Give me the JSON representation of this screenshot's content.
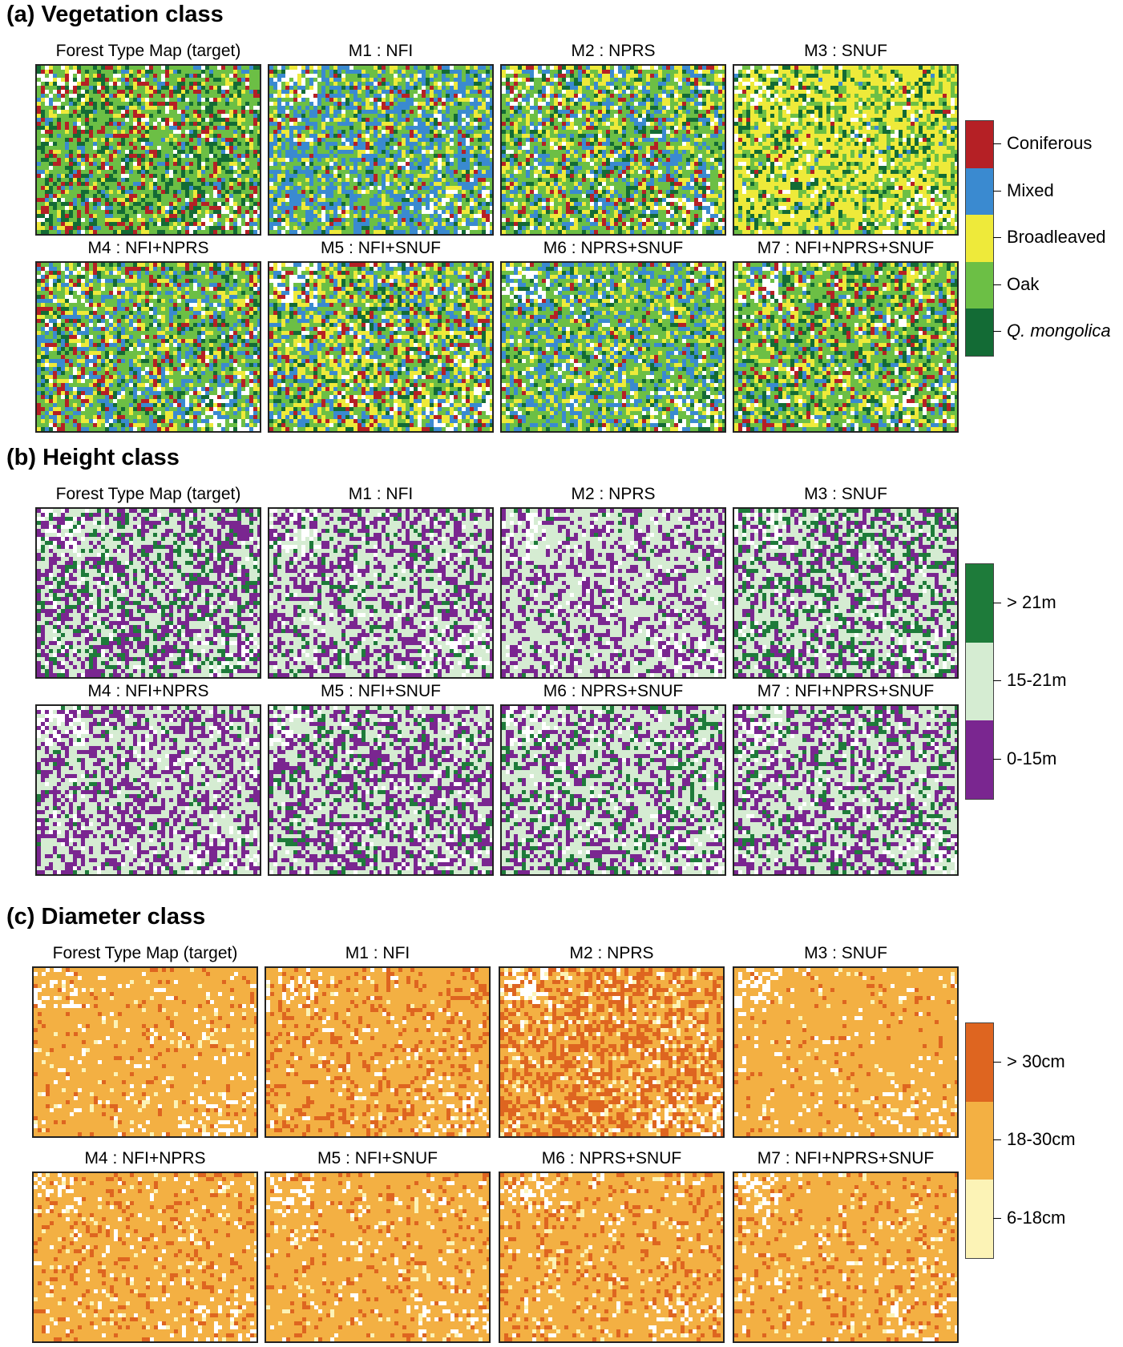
{
  "panels": [
    {
      "id": "vegetation",
      "title": "(a) Vegetation class",
      "map_titles": [
        "Forest Type Map (target)",
        "M1 : NFI",
        "M2 : NPRS",
        "M3 : SNUF",
        "M4 : NFI+NPRS",
        "M5 : NFI+SNUF",
        "M6 : NPRS+SNUF",
        "M7 : NFI+NPRS+SNUF"
      ],
      "legend": [
        {
          "label": "Coniferous",
          "color": "#b52025"
        },
        {
          "label": "Mixed",
          "color": "#3a8ad0"
        },
        {
          "label": "Broadleaved",
          "color": "#eeea3a"
        },
        {
          "label": "Oak",
          "color": "#6cbf45"
        },
        {
          "label": "Q. mongolica",
          "color": "#136b35",
          "italic": true
        }
      ]
    },
    {
      "id": "height",
      "title": "(b) Height class",
      "map_titles": [
        "Forest Type Map (target)",
        "M1 : NFI",
        "M2 : NPRS",
        "M3 : SNUF",
        "M4 : NFI+NPRS",
        "M5 : NFI+SNUF",
        "M6 : NPRS+SNUF",
        "M7 : NFI+NPRS+SNUF"
      ],
      "legend": [
        {
          "label": "> 21m",
          "color": "#1e7b3a"
        },
        {
          "label": "15-21m",
          "color": "#d5ecd2"
        },
        {
          "label": "0-15m",
          "color": "#7a2690"
        }
      ]
    },
    {
      "id": "diameter",
      "title": "(c) Diameter class",
      "map_titles": [
        "Forest Type Map (target)",
        "M1 : NFI",
        "M2 : NPRS",
        "M3 : SNUF",
        "M4 : NFI+NPRS",
        "M5 : NFI+SNUF",
        "M6 : NPRS+SNUF",
        "M7 : NFI+NPRS+SNUF"
      ],
      "legend": [
        {
          "label": "> 30cm",
          "color": "#de6520"
        },
        {
          "label": "18-30cm",
          "color": "#f3b043"
        },
        {
          "label": "6-18cm",
          "color": "#fcf3b6"
        }
      ]
    }
  ]
}
